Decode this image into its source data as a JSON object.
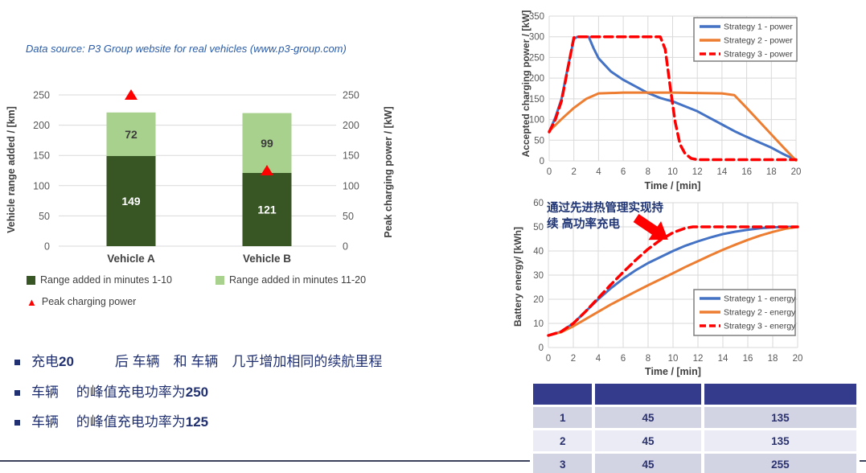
{
  "data_source": "Data source: P3 Group website for real vehicles (www.p3-group.com)",
  "colors": {
    "dark_green": "#375623",
    "light_green": "#a9d18e",
    "red": "#fe0000",
    "blue": "#4472c4",
    "orange": "#ed7d31",
    "grid": "#d9d9d9",
    "tick_text": "#595959",
    "axis_text": "#404040",
    "navy_text": "#203070",
    "table_header": "#343a8c",
    "table_row_a": "#d2d3e3",
    "table_row_b": "#eaebf4"
  },
  "chart_data": [
    {
      "type": "bar",
      "title": "",
      "categories": [
        "Vehicle A",
        "Vehicle B"
      ],
      "series": [
        {
          "name": "Range added in minutes 1-10",
          "color": "#375623",
          "values": [
            149,
            121
          ]
        },
        {
          "name": "Range added in minutes 11-20",
          "color": "#a9d18e",
          "values": [
            72,
            99
          ]
        },
        {
          "name": "Peak charging power",
          "color": "#fe0000",
          "marker": "triangle",
          "values": [
            250,
            125
          ]
        }
      ],
      "ylabel_left": "Vehicle range added / [km]",
      "ylabel_right": "Peak charging power / [kW]",
      "yticks": [
        0,
        50,
        100,
        150,
        200,
        250
      ],
      "ylim": [
        0,
        250
      ],
      "grid": "horizontal",
      "legend_position": "bottom-left"
    },
    {
      "type": "line",
      "xlabel": "Time / [min]",
      "ylabel": "Accepted charging power / [kW]",
      "xlim": [
        0,
        20
      ],
      "ylim": [
        0,
        350
      ],
      "xticks": [
        0,
        2,
        4,
        6,
        8,
        10,
        12,
        14,
        16,
        18,
        20
      ],
      "yticks": [
        0,
        50,
        100,
        150,
        200,
        250,
        300,
        350
      ],
      "grid": "both",
      "legend_position": "top-right",
      "series": [
        {
          "name": "Strategy 1 - power",
          "color": "#4472c4",
          "dash": false,
          "points": [
            [
              0,
              70
            ],
            [
              0.5,
              105
            ],
            [
              1,
              150
            ],
            [
              1.5,
              225
            ],
            [
              2,
              295
            ],
            [
              2.3,
              300
            ],
            [
              3.2,
              300
            ],
            [
              3.6,
              272
            ],
            [
              4,
              248
            ],
            [
              4.5,
              232
            ],
            [
              5,
              216
            ],
            [
              6,
              196
            ],
            [
              7,
              180
            ],
            [
              8,
              164
            ],
            [
              9,
              152
            ],
            [
              9.6,
              147
            ],
            [
              10,
              144
            ],
            [
              11,
              132
            ],
            [
              12,
              120
            ],
            [
              13,
              104
            ],
            [
              14,
              88
            ],
            [
              15,
              72
            ],
            [
              16,
              58
            ],
            [
              17,
              45
            ],
            [
              18,
              32
            ],
            [
              19,
              16
            ],
            [
              20,
              2
            ]
          ]
        },
        {
          "name": "Strategy 2 - power",
          "color": "#ed7d31",
          "dash": false,
          "points": [
            [
              0,
              72
            ],
            [
              1,
              101
            ],
            [
              2,
              128
            ],
            [
              3,
              150
            ],
            [
              4,
              163
            ],
            [
              6,
              165
            ],
            [
              8,
              165
            ],
            [
              10,
              165
            ],
            [
              12,
              164
            ],
            [
              14,
              163
            ],
            [
              15,
              159
            ],
            [
              16,
              128
            ],
            [
              17,
              96
            ],
            [
              18,
              64
            ],
            [
              19,
              32
            ],
            [
              20,
              1
            ]
          ]
        },
        {
          "name": "Strategy 3 - power",
          "color": "#fe0000",
          "dash": true,
          "points": [
            [
              0,
              70
            ],
            [
              0.5,
              100
            ],
            [
              1,
              145
            ],
            [
              1.5,
              222
            ],
            [
              2,
              298
            ],
            [
              2.2,
              300
            ],
            [
              9,
              300
            ],
            [
              9.4,
              270
            ],
            [
              9.8,
              180
            ],
            [
              10.2,
              95
            ],
            [
              10.6,
              40
            ],
            [
              11,
              18
            ],
            [
              11.5,
              6
            ],
            [
              12,
              3
            ],
            [
              20,
              3
            ]
          ]
        }
      ]
    },
    {
      "type": "line",
      "xlabel": "Time / [min]",
      "ylabel": "Battery energy/ [kWh]",
      "xlim": [
        0,
        20
      ],
      "ylim": [
        0,
        60
      ],
      "xticks": [
        0,
        2,
        4,
        6,
        8,
        10,
        12,
        14,
        16,
        18,
        20
      ],
      "yticks": [
        0,
        10,
        20,
        30,
        40,
        50,
        60
      ],
      "grid": "both",
      "legend_position": "bottom-right",
      "annotation": {
        "line1": "通过先进热管理实现持",
        "line2": "续 高功率充电",
        "arrow": "red-block-arrow"
      },
      "series": [
        {
          "name": "Strategy 1 - energy",
          "color": "#4472c4",
          "dash": false,
          "points": [
            [
              0,
              5
            ],
            [
              1,
              6.5
            ],
            [
              2,
              10
            ],
            [
              3,
              15
            ],
            [
              4,
              20
            ],
            [
              5,
              24.5
            ],
            [
              6,
              28.5
            ],
            [
              7,
              32
            ],
            [
              8,
              35
            ],
            [
              9,
              37.5
            ],
            [
              10,
              40
            ],
            [
              11,
              42.2
            ],
            [
              12,
              44
            ],
            [
              13,
              45.6
            ],
            [
              14,
              47
            ],
            [
              15,
              48
            ],
            [
              16,
              48.8
            ],
            [
              17,
              49.4
            ],
            [
              18,
              49.8
            ],
            [
              19,
              50
            ],
            [
              20,
              50
            ]
          ]
        },
        {
          "name": "Strategy 2 - energy",
          "color": "#ed7d31",
          "dash": false,
          "points": [
            [
              0,
              5
            ],
            [
              1,
              6.3
            ],
            [
              2,
              8.8
            ],
            [
              3,
              11.8
            ],
            [
              4,
              14.8
            ],
            [
              5,
              17.8
            ],
            [
              6,
              20.5
            ],
            [
              7,
              23.2
            ],
            [
              8,
              25.8
            ],
            [
              9,
              28.3
            ],
            [
              10,
              30.8
            ],
            [
              11,
              33.4
            ],
            [
              12,
              35.8
            ],
            [
              13,
              38.2
            ],
            [
              14,
              40.5
            ],
            [
              15,
              42.6
            ],
            [
              16,
              44.6
            ],
            [
              17,
              46.4
            ],
            [
              18,
              47.9
            ],
            [
              19,
              49.2
            ],
            [
              20,
              50
            ]
          ]
        },
        {
          "name": "Strategy 3 - energy",
          "color": "#fe0000",
          "dash": true,
          "points": [
            [
              0,
              5
            ],
            [
              1,
              6.5
            ],
            [
              2,
              10
            ],
            [
              3,
              15
            ],
            [
              4,
              20.5
            ],
            [
              5,
              26
            ],
            [
              6,
              31.2
            ],
            [
              7,
              36.2
            ],
            [
              8,
              40.8
            ],
            [
              9,
              44.6
            ],
            [
              10,
              47.6
            ],
            [
              11,
              49.5
            ],
            [
              11.6,
              50
            ],
            [
              13,
              50
            ],
            [
              20,
              50
            ]
          ]
        }
      ]
    }
  ],
  "table": {
    "headers": [
      "",
      "",
      ""
    ],
    "rows": [
      [
        "1",
        "45",
        "135"
      ],
      [
        "2",
        "45",
        "135"
      ],
      [
        "3",
        "45",
        "255"
      ]
    ]
  },
  "bullets": [
    {
      "pre": "充电",
      "num": "20",
      "post": "　　　后 车辆　和 车辆　几乎增加相同的续航里程"
    },
    {
      "pre": "车辆　 的峰值充电功率为",
      "num": "250",
      "post": ""
    },
    {
      "pre": "车辆　 的峰值充电功率为",
      "num": "125",
      "post": ""
    }
  ]
}
